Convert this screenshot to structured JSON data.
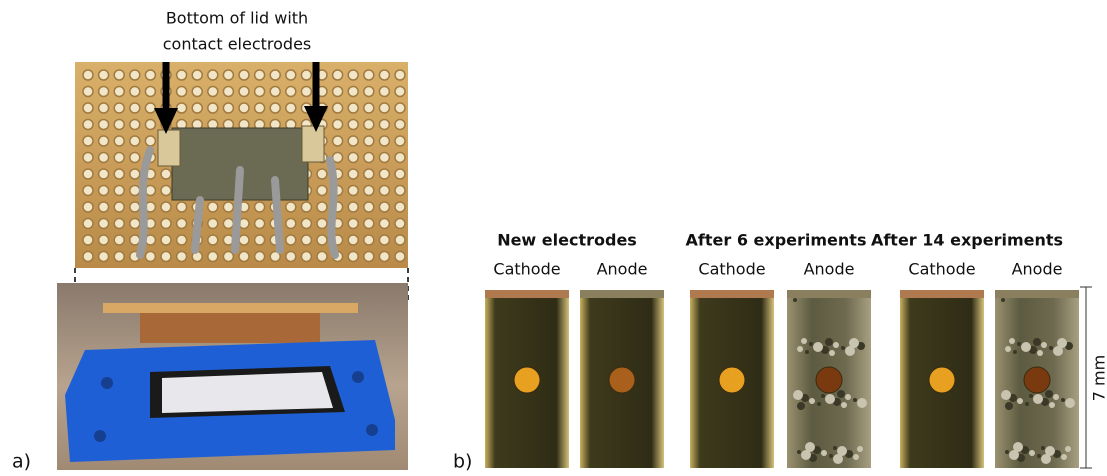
{
  "panel_a": {
    "label": "a)",
    "annotation": [
      "Bottom of lid with",
      "contact electrodes"
    ]
  },
  "panel_b": {
    "label": "b)",
    "groups": [
      {
        "title": "New electrodes",
        "electrodes": [
          "Cathode",
          "Anode"
        ]
      },
      {
        "title": "After 6 experiments",
        "electrodes": [
          "Cathode",
          "Anode"
        ]
      },
      {
        "title": "After 14 experiments",
        "electrodes": [
          "Cathode",
          "Anode"
        ]
      }
    ],
    "scale_label": "7 mm"
  }
}
